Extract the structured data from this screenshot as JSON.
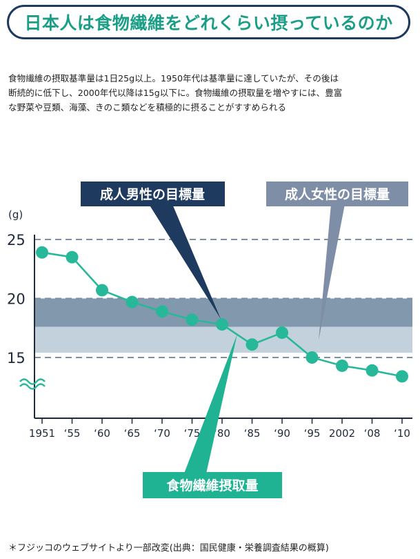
{
  "title": "日本人は食物繊維をどれくらい摂っているのか",
  "description": [
    "食物繊維の摂取基準量は1日25g以上。1950年代は基準量に達していたが、その後は",
    "断続的に低下し、2000年代以降は15g以下に。食物繊維の摂取量を増やすには、豊富",
    "な野菜や豆類、海藻、きのこ類などを積極的に摂ることがすすめられる"
  ],
  "footnote": "＊フジッコのウェブサイトより一部改変(出典：国民健康・栄養調査結果の概算)",
  "colors": {
    "title_text": "#1b9e86",
    "title_border": "#1e3a5f",
    "series": "#27b89a",
    "male_band": "#8299ad",
    "female_band": "#c3d1dd",
    "male_label_bg": "#1e3a5f",
    "female_label_bg": "#7f8ea7",
    "series_label_bg": "#1fb394",
    "axis": "#1e2a3a",
    "grid": "#7d8fa3"
  },
  "chart_data": {
    "type": "line",
    "ylabel": "(g)",
    "ylim": [
      10,
      25
    ],
    "y_ticks": [
      "25",
      "20",
      "15"
    ],
    "y_tick_values": [
      25,
      20,
      15
    ],
    "axis_break": true,
    "categories": [
      "1951",
      "‘55",
      "‘60",
      "‘65",
      "‘70",
      "‘75",
      "‘80",
      "‘85",
      "‘90",
      "‘95",
      "2002",
      "‘08",
      "‘10"
    ],
    "series": [
      {
        "name": "食物繊維摂取量",
        "values": [
          23.9,
          23.5,
          20.7,
          19.7,
          18.9,
          18.2,
          17.8,
          16.1,
          17.1,
          15.0,
          14.3,
          13.9,
          13.4
        ]
      }
    ],
    "bands": [
      {
        "name": "成人男性の目標量",
        "from": 17.6,
        "to": 20.0
      },
      {
        "name": "成人女性の目標量",
        "from": 15.4,
        "to": 17.6
      }
    ],
    "annotations": [
      {
        "label": "成人男性の目標量",
        "points_to": "‘80"
      },
      {
        "label": "成人女性の目標量",
        "points_to": "‘95"
      },
      {
        "label": "食物繊維摂取量",
        "points_to": "series"
      }
    ]
  }
}
